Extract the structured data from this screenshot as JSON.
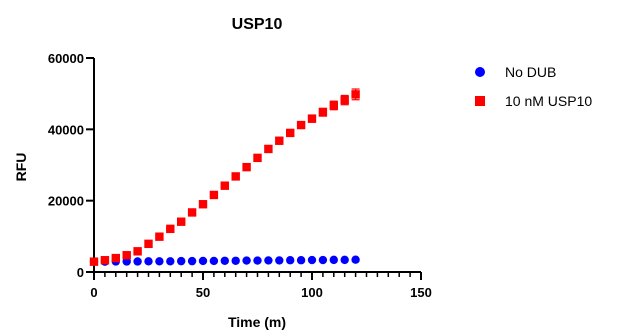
{
  "chart_data": {
    "type": "scatter",
    "title": "USP10",
    "xlabel": "Time (m)",
    "ylabel": "RFU",
    "xlim": [
      0,
      150
    ],
    "ylim": [
      0,
      60000
    ],
    "xticks": [
      0,
      50,
      100,
      150
    ],
    "yticks": [
      0,
      20000,
      40000,
      60000
    ],
    "legend_position": "top-right",
    "x": [
      0,
      5,
      10,
      15,
      20,
      25,
      30,
      35,
      40,
      45,
      50,
      55,
      60,
      65,
      70,
      75,
      80,
      85,
      90,
      95,
      100,
      105,
      110,
      115,
      120
    ],
    "series": [
      {
        "name": "No DUB",
        "color": "#0000ff",
        "marker": "circle",
        "values": [
          2900,
          2900,
          2950,
          2950,
          2950,
          3000,
          3000,
          3000,
          3050,
          3050,
          3100,
          3100,
          3150,
          3150,
          3200,
          3200,
          3250,
          3250,
          3300,
          3300,
          3350,
          3350,
          3400,
          3400,
          3450
        ]
      },
      {
        "name": "10 nM USP10",
        "color": "#ff0000",
        "marker": "square",
        "values": [
          2900,
          3300,
          3900,
          4700,
          5800,
          7900,
          9900,
          12100,
          14100,
          16700,
          19000,
          21600,
          24200,
          26800,
          29400,
          32000,
          34500,
          36800,
          39000,
          41200,
          43000,
          44800,
          46700,
          48200,
          49800
        ],
        "errors": [
          0,
          0,
          300,
          300,
          300,
          300,
          300,
          300,
          400,
          400,
          400,
          400,
          500,
          500,
          500,
          600,
          600,
          700,
          800,
          900,
          1000,
          1100,
          1200,
          1300,
          1500
        ]
      }
    ]
  }
}
